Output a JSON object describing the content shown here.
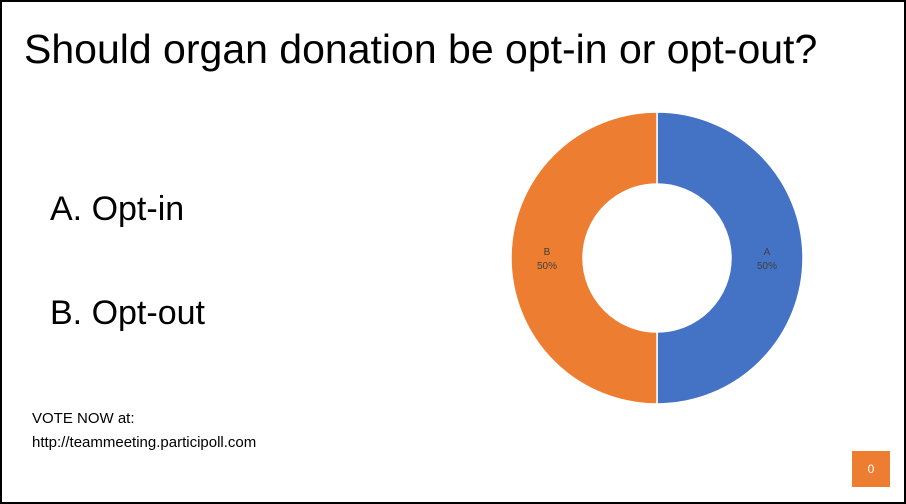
{
  "slide": {
    "title": "Should organ donation be opt-in or opt-out?",
    "options": [
      {
        "letter": "A.",
        "text": "Opt-in"
      },
      {
        "letter": "B.",
        "text": "Opt-out"
      }
    ],
    "vote_line1": "VOTE NOW at:",
    "vote_line2": "http://teammeeting.participoll.com",
    "counter": "0"
  },
  "chart_data": {
    "type": "pie",
    "variant": "donut",
    "categories": [
      "A",
      "B"
    ],
    "values": [
      50,
      50
    ],
    "value_labels": [
      "50%",
      "50%"
    ],
    "colors": [
      "#4472C4",
      "#ED7D31"
    ]
  }
}
